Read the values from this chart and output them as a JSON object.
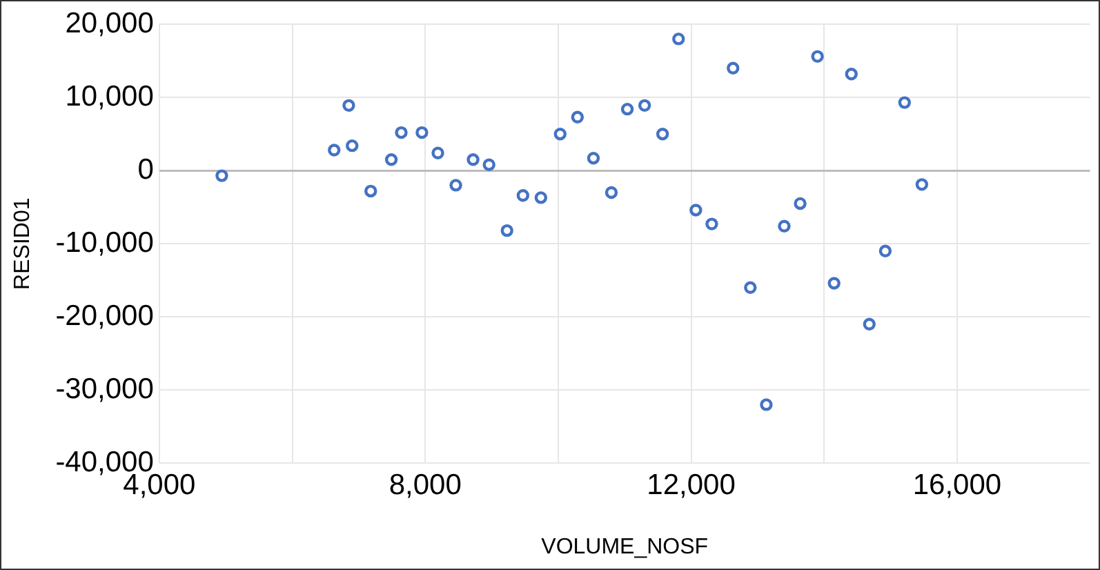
{
  "chart_data": {
    "type": "scatter",
    "xlabel": "VOLUME_NOSF",
    "ylabel": "RESID01",
    "marker": "circle",
    "grid": true,
    "x": [
      4940,
      6630,
      6850,
      6900,
      7180,
      7490,
      7640,
      7950,
      8190,
      8460,
      8720,
      8960,
      9230,
      9470,
      9740,
      10030,
      10290,
      10530,
      10800,
      11040,
      11300,
      11570,
      11810,
      12070,
      12310,
      12630,
      12890,
      13130,
      13400,
      13640,
      13900,
      14150,
      14410,
      14680,
      14920,
      15210,
      15470
    ],
    "series": [
      {
        "color": "#4472c4",
        "values": [
          -700,
          2800,
          8900,
          3400,
          -2800,
          1500,
          5200,
          5200,
          2400,
          -2000,
          1500,
          800,
          -8200,
          -3400,
          -3700,
          5000,
          7300,
          1700,
          -3000,
          8400,
          8900,
          5000,
          18000,
          -5400,
          -7300,
          14000,
          -16000,
          -32000,
          -7600,
          -4500,
          15600,
          -15400,
          13200,
          -21000,
          -11000,
          9300,
          -1900
        ]
      }
    ],
    "xlim": [
      4000,
      18000
    ],
    "xticks": [
      {
        "value": 4000,
        "label": "4,000"
      },
      {
        "value": 6000,
        "label": null
      },
      {
        "value": 8000,
        "label": "8,000"
      },
      {
        "value": 10000,
        "label": null
      },
      {
        "value": 12000,
        "label": "12,000"
      },
      {
        "value": 14000,
        "label": null
      },
      {
        "value": 16000,
        "label": "16,000"
      }
    ],
    "ylim": [
      -40000,
      20000
    ],
    "yticks": [
      {
        "value": -40000,
        "label": "-40,000"
      },
      {
        "value": -30000,
        "label": "-30,000"
      },
      {
        "value": -20000,
        "label": "-20,000"
      },
      {
        "value": -10000,
        "label": "-10,000"
      },
      0,
      {
        "value": 10000,
        "label": "10,000"
      },
      {
        "value": 20000,
        "label": "20,000"
      }
    ],
    "legend": false
  }
}
